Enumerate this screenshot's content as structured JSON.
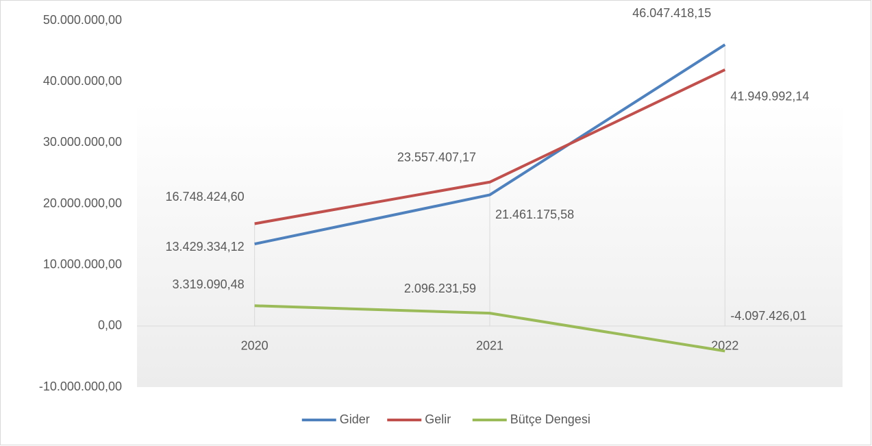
{
  "chart_data": {
    "type": "line",
    "categories": [
      "2020",
      "2021",
      "2022"
    ],
    "series": [
      {
        "name": "Gider",
        "color": "#4f81bd",
        "values": [
          13429334.12,
          21461175.58,
          46047418.15
        ],
        "value_labels": [
          "13.429.334,12",
          "21.461.175,58",
          "46.047.418,15"
        ]
      },
      {
        "name": "Gelir",
        "color": "#c0504d",
        "values": [
          16748424.6,
          23557407.17,
          41949992.14
        ],
        "value_labels": [
          "16.748.424,60",
          "23.557.407,17",
          "41.949.992,14"
        ]
      },
      {
        "name": "Bütçe Dengesi",
        "color": "#9bbb59",
        "values": [
          3319090.48,
          2096231.59,
          -4097426.01
        ],
        "value_labels": [
          "3.319.090,48",
          "2.096.231,59",
          "-4.097.426,01"
        ]
      }
    ],
    "ylim": [
      -10000000,
      50000000
    ],
    "yticks": [
      {
        "value": -10000000,
        "label": "-10.000.000,00"
      },
      {
        "value": 0,
        "label": "0,00"
      },
      {
        "value": 10000000,
        "label": "10.000.000,00"
      },
      {
        "value": 20000000,
        "label": "20.000.000,00"
      },
      {
        "value": 30000000,
        "label": "30.000.000,00"
      },
      {
        "value": 40000000,
        "label": "40.000.000,00"
      },
      {
        "value": 50000000,
        "label": "50.000.000,00"
      }
    ],
    "legend": "bottom"
  }
}
